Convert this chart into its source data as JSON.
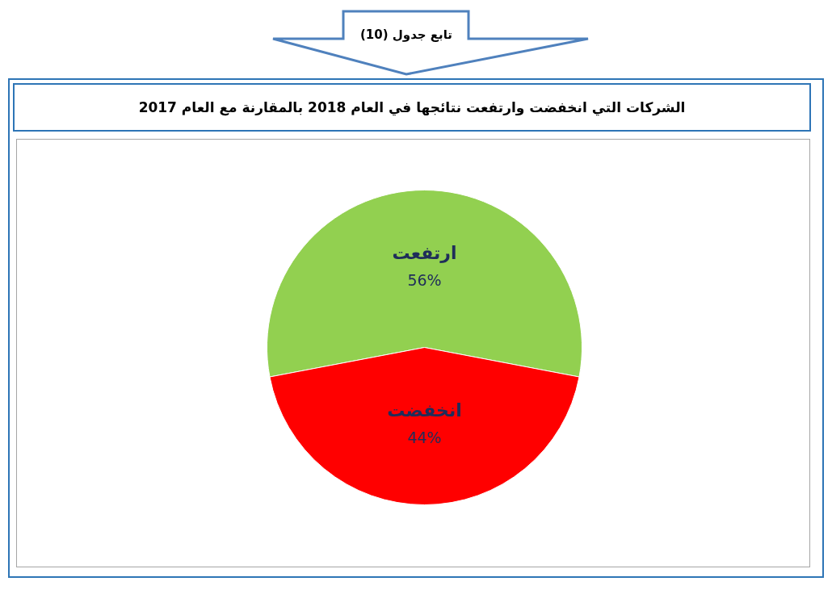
{
  "chart_data": {
    "type": "pie",
    "title": "الشركات التي انخفضت وارتفعت نتائجها في العام 2018 بالمقارنة مع العام 2017",
    "annotations": [
      "تابع جدول (10)"
    ],
    "categories": [
      "ارتفعت",
      "انخفضت"
    ],
    "values": [
      56,
      44
    ],
    "colors": [
      "#92d050",
      "#ff0000"
    ],
    "value_labels": [
      "56%",
      "44%"
    ]
  }
}
